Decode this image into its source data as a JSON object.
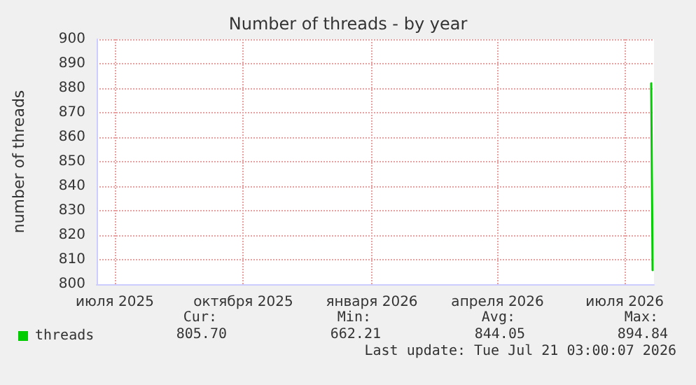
{
  "chart_data": {
    "type": "line",
    "title": "Number of threads - by year",
    "ylabel": "number of threads",
    "x": [
      "2026-07-20",
      "2026-07-21"
    ],
    "series": [
      {
        "name": "threads",
        "color": "#00cc00",
        "values": [
          882,
          805.7
        ]
      }
    ],
    "xlim": [
      "2025-06-18",
      "2026-07-22"
    ],
    "xticks": [
      {
        "value": "2025-07-01",
        "label": "июля 2025"
      },
      {
        "value": "2025-10-01",
        "label": "октября 2025"
      },
      {
        "value": "2026-01-01",
        "label": "января 2026"
      },
      {
        "value": "2026-04-01",
        "label": "апреля 2026"
      },
      {
        "value": "2026-07-01",
        "label": "июля 2026"
      }
    ],
    "ylim": [
      800,
      900
    ],
    "yticks": [
      800,
      810,
      820,
      830,
      840,
      850,
      860,
      870,
      880,
      890,
      900
    ],
    "grid": true,
    "legend": "bottom left",
    "marker": "none",
    "line_style": "solid",
    "annotations": [
      "Cur:",
      "Min:",
      "Avg:",
      "Max:",
      "805.70",
      "662.21",
      "844.05",
      "894.84",
      "Last update: Tue Jul 21 03:00:07 2026"
    ]
  }
}
